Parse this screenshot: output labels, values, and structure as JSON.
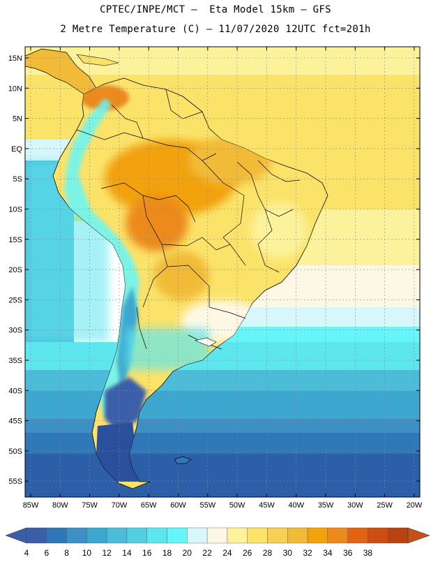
{
  "header": {
    "line1": "CPTEC/INPE/MCT –  Eta Model 15km – GFS",
    "line2": "2 Metre Temperature (C) – 11/07/2020 12UTC fct=201h"
  },
  "map": {
    "lat_labels": [
      "15N",
      "10N",
      "5N",
      "EQ",
      "5S",
      "10S",
      "15S",
      "20S",
      "25S",
      "30S",
      "35S",
      "40S",
      "45S",
      "50S",
      "55S"
    ],
    "lon_labels": [
      "85W",
      "80W",
      "75W",
      "70W",
      "65W",
      "60W",
      "55W",
      "50W",
      "45W",
      "40W",
      "35W",
      "30W",
      "25W",
      "20W"
    ]
  },
  "colorbar": {
    "ticks": [
      "4",
      "6",
      "8",
      "10",
      "12",
      "14",
      "16",
      "18",
      "20",
      "22",
      "24",
      "26",
      "28",
      "30",
      "32",
      "34",
      "36",
      "38"
    ],
    "colors": [
      "#3a5fa8",
      "#2f78b7",
      "#3d8fc4",
      "#3ea7cf",
      "#4cbcd9",
      "#55cfe0",
      "#5ee6ee",
      "#66f6fa",
      "#d7f7fb",
      "#fdf8e6",
      "#fdf29c",
      "#fbe36a",
      "#f7cf54",
      "#f1bb37",
      "#f1a20d",
      "#ec8a1d",
      "#e16416",
      "#cd4d12",
      "#b84210"
    ],
    "low_color": "#3a5fa8",
    "high_color": "#c4501a"
  }
}
